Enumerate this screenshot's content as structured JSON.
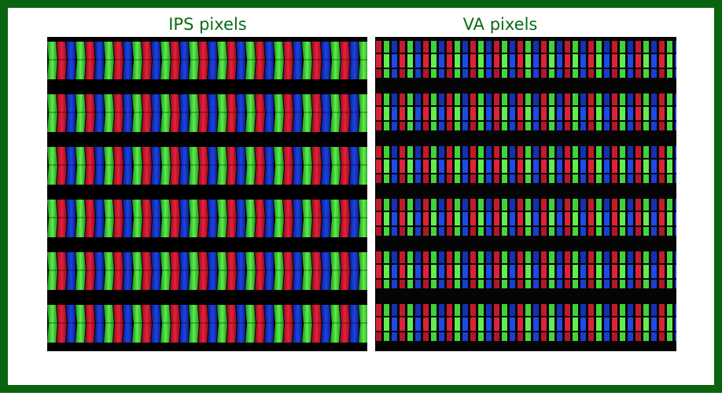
{
  "panels": [
    {
      "title": "IPS pixels"
    },
    {
      "title": "VA pixels"
    }
  ]
}
